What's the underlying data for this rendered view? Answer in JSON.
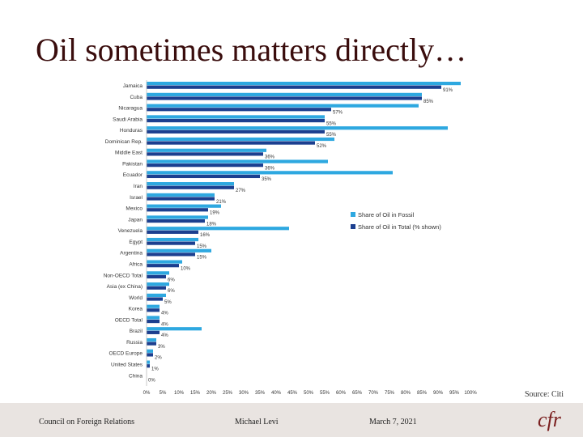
{
  "slide": {
    "title": "Oil sometimes matters directly…",
    "source": "Source: Citi"
  },
  "footer": {
    "organization": "Council on Foreign Relations",
    "author": "Michael Levi",
    "date": "March 7, 2021",
    "logo_text": "cfr"
  },
  "colors": {
    "fossil": "#2ea8e0",
    "total": "#1c3f8f",
    "title": "#3a0d0d"
  },
  "chart_data": {
    "type": "bar",
    "orientation": "horizontal",
    "categories": [
      "Jamaica",
      "Cuba",
      "Nicaragua",
      "Saudi Arabia",
      "Honduras",
      "Dominican Rep.",
      "Middle East",
      "Pakistan",
      "Ecuador",
      "Iran",
      "Israel",
      "Mexico",
      "Japan",
      "Venezuela",
      "Egypt",
      "Argentina",
      "Africa",
      "Non-OECD Total",
      "Asia (ex China)",
      "World",
      "Korea",
      "OECD Total",
      "Brazil",
      "Russia",
      "OECD Europe",
      "United States",
      "China"
    ],
    "series": [
      {
        "name": "Share of Oil in Fossil",
        "values": [
          97,
          85,
          84,
          55,
          93,
          58,
          37,
          56,
          76,
          27,
          21,
          23,
          19,
          44,
          16,
          20,
          11,
          7,
          7,
          6,
          4,
          4,
          17,
          3,
          2,
          1,
          0
        ]
      },
      {
        "name": "Share of Oil in Total (% shown)",
        "values": [
          91,
          85,
          57,
          55,
          55,
          52,
          36,
          36,
          35,
          27,
          21,
          19,
          18,
          16,
          15,
          15,
          10,
          6,
          6,
          5,
          4,
          4,
          4,
          3,
          2,
          1,
          0
        ]
      }
    ],
    "data_labels": [
      "91%",
      "85%",
      "57%",
      "55%",
      "55%",
      "52%",
      "36%",
      "36%",
      "35%",
      "27%",
      "21%",
      "19%",
      "18%",
      "16%",
      "15%",
      "15%",
      "10%",
      "6%",
      "6%",
      "5%",
      "4%",
      "4%",
      "4%",
      "3%",
      "2%",
      "1%",
      "0%"
    ],
    "x_ticks": [
      "0%",
      "5%",
      "10%",
      "15%",
      "20%",
      "25%",
      "30%",
      "35%",
      "40%",
      "45%",
      "50%",
      "55%",
      "60%",
      "65%",
      "70%",
      "75%",
      "80%",
      "85%",
      "90%",
      "95%",
      "100%"
    ],
    "xlim": [
      0,
      100
    ],
    "grid": false,
    "legend_position": "right"
  }
}
